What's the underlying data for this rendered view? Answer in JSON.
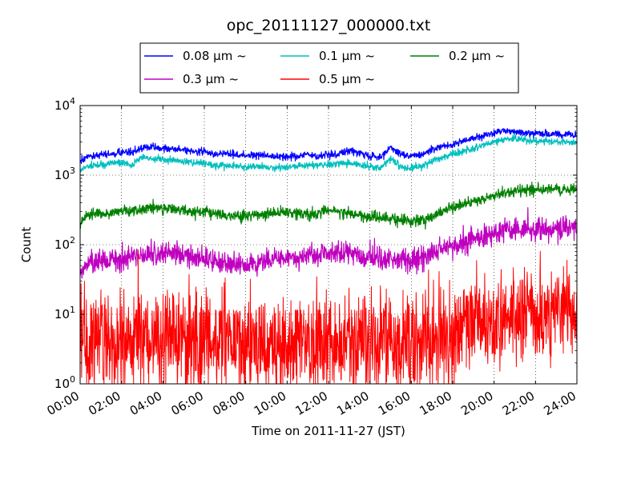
{
  "chart_data": {
    "type": "line",
    "title": "opc_20111127_000000.txt",
    "xlabel": "Time on 2011-11-27 (JST)",
    "ylabel": "Count",
    "yscale": "log",
    "ylim": [
      1,
      10000
    ],
    "xlim": [
      "00:00",
      "24:00"
    ],
    "grid": true,
    "legend_position": "top-center-outside",
    "x_ticks": [
      "00:00",
      "02:00",
      "04:00",
      "06:00",
      "08:00",
      "10:00",
      "12:00",
      "14:00",
      "16:00",
      "18:00",
      "20:00",
      "22:00",
      "24:00"
    ],
    "y_ticks": [
      {
        "value": 1,
        "base": "10",
        "exp": "0"
      },
      {
        "value": 10,
        "base": "10",
        "exp": "1"
      },
      {
        "value": 100,
        "base": "10",
        "exp": "2"
      },
      {
        "value": 1000,
        "base": "10",
        "exp": "3"
      },
      {
        "value": 10000,
        "base": "10",
        "exp": "4"
      }
    ],
    "x_hours": [
      0,
      0.5,
      1,
      1.5,
      2,
      2.5,
      3,
      3.5,
      4,
      4.5,
      5,
      5.5,
      6,
      6.5,
      7,
      7.5,
      8,
      8.5,
      9,
      9.5,
      10,
      10.5,
      11,
      11.5,
      12,
      12.5,
      13,
      13.5,
      14,
      14.5,
      15,
      15.5,
      16,
      16.5,
      17,
      17.5,
      18,
      18.5,
      19,
      19.5,
      20,
      20.5,
      21,
      21.5,
      22,
      22.5,
      23,
      23.5,
      24
    ],
    "series": [
      {
        "name": "0.08 μm ~",
        "color": "#0000ff",
        "noise": 0.025,
        "values": [
          1600,
          1900,
          1950,
          2000,
          2100,
          2100,
          2500,
          2500,
          2400,
          2400,
          2300,
          2200,
          2200,
          2000,
          2050,
          2000,
          1900,
          1950,
          1900,
          1850,
          1800,
          1900,
          2000,
          1800,
          2000,
          2000,
          2300,
          2100,
          1900,
          1800,
          2500,
          2000,
          1900,
          2000,
          2300,
          2600,
          2800,
          3100,
          3400,
          3700,
          4100,
          4400,
          4300,
          4000,
          4000,
          4000,
          3900,
          3800,
          3700
        ]
      },
      {
        "name": "0.1 μm ~",
        "color": "#00bfbf",
        "noise": 0.025,
        "values": [
          1200,
          1350,
          1400,
          1500,
          1500,
          1400,
          1800,
          1750,
          1700,
          1650,
          1550,
          1500,
          1500,
          1350,
          1400,
          1350,
          1300,
          1350,
          1300,
          1250,
          1300,
          1350,
          1400,
          1350,
          1450,
          1450,
          1500,
          1400,
          1300,
          1250,
          1700,
          1300,
          1250,
          1350,
          1600,
          1800,
          2000,
          2200,
          2400,
          2700,
          3000,
          3300,
          3300,
          3200,
          3100,
          3100,
          3000,
          3000,
          2900
        ]
      },
      {
        "name": "0.2 μm ~",
        "color": "#008000",
        "noise": 0.04,
        "values": [
          200,
          270,
          280,
          290,
          300,
          310,
          330,
          340,
          330,
          320,
          310,
          300,
          300,
          280,
          270,
          260,
          260,
          270,
          280,
          280,
          300,
          280,
          270,
          280,
          320,
          300,
          280,
          260,
          250,
          240,
          240,
          230,
          220,
          230,
          260,
          300,
          340,
          380,
          420,
          460,
          500,
          560,
          600,
          600,
          620,
          620,
          640,
          620,
          620
        ]
      },
      {
        "name": "0.3 μm ~",
        "color": "#bf00bf",
        "noise": 0.08,
        "values": [
          40,
          55,
          60,
          60,
          65,
          65,
          70,
          75,
          75,
          75,
          70,
          65,
          65,
          60,
          55,
          55,
          50,
          55,
          60,
          60,
          65,
          65,
          70,
          65,
          75,
          75,
          75,
          70,
          65,
          65,
          65,
          60,
          60,
          62,
          75,
          90,
          100,
          110,
          120,
          130,
          140,
          160,
          170,
          165,
          165,
          165,
          170,
          170,
          170
        ]
      },
      {
        "name": "0.5 μm ~",
        "color": "#ff0000",
        "noise": 0.32,
        "values": [
          5,
          5,
          5.5,
          5.5,
          5.5,
          5.5,
          6,
          6,
          6,
          6,
          5.5,
          5.5,
          5,
          5,
          5,
          5,
          4.5,
          4.5,
          4.5,
          4.5,
          5,
          5,
          5,
          5,
          5,
          5,
          5,
          5,
          5,
          5,
          4.5,
          4.5,
          4.5,
          5,
          5.5,
          6,
          7,
          8,
          8,
          9,
          10,
          11,
          11,
          11,
          11,
          11,
          12,
          12,
          12
        ]
      }
    ]
  }
}
